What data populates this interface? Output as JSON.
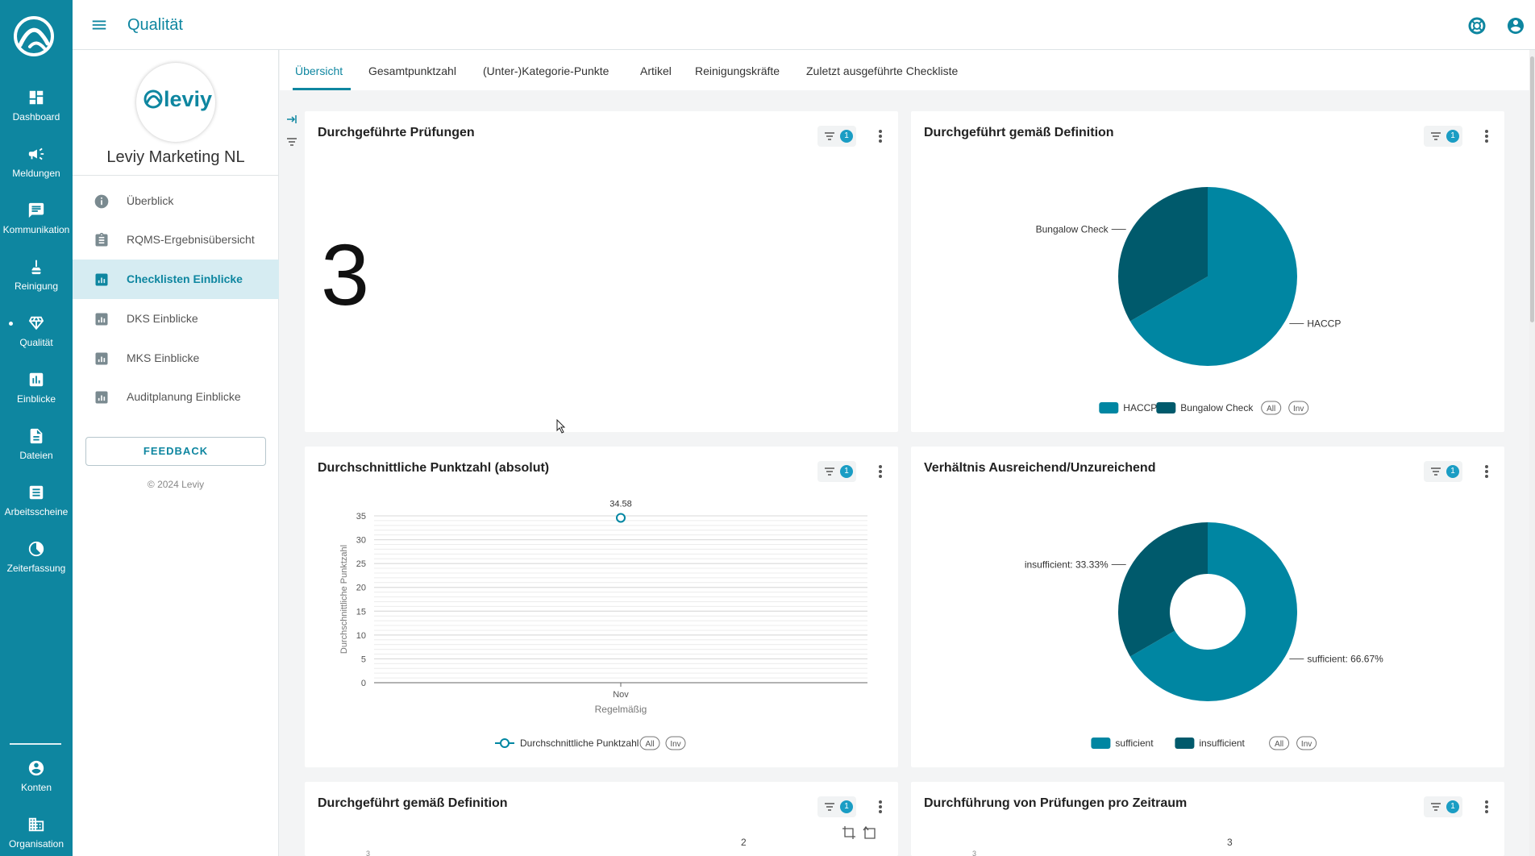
{
  "app": {
    "page_title": "Qualität"
  },
  "rail": {
    "items": [
      {
        "label": "Dashboard",
        "icon": "dashboard-icon"
      },
      {
        "label": "Meldungen",
        "icon": "megaphone-icon"
      },
      {
        "label": "Kommunikation",
        "icon": "chat-icon"
      },
      {
        "label": "Reinigung",
        "icon": "broom-icon"
      },
      {
        "label": "Qualität",
        "icon": "diamond-icon"
      },
      {
        "label": "Einblicke",
        "icon": "insights-icon"
      },
      {
        "label": "Dateien",
        "icon": "file-icon"
      },
      {
        "label": "Arbeitsscheine",
        "icon": "worksheet-icon"
      },
      {
        "label": "Zeiterfassung",
        "icon": "clock-icon"
      },
      {
        "label": "Konten",
        "icon": "account-icon"
      },
      {
        "label": "Organisation",
        "icon": "organisation-icon"
      }
    ]
  },
  "sidebar": {
    "brand_logo_text": "leviy",
    "brand_name": "Leviy Marketing NL",
    "items": [
      {
        "label": "Überblick"
      },
      {
        "label": "RQMS-Ergebnisübersicht"
      },
      {
        "label": "Checklisten Einblicke"
      },
      {
        "label": "DKS Einblicke"
      },
      {
        "label": "MKS Einblicke"
      },
      {
        "label": "Auditplanung Einblicke"
      }
    ],
    "feedback_label": "FEEDBACK",
    "copyright": "© 2024 Leviy"
  },
  "tabs": [
    {
      "label": "Übersicht"
    },
    {
      "label": "Gesamtpunktzahl"
    },
    {
      "label": "(Unter-)Kategorie-Punkte"
    },
    {
      "label": "Artikel"
    },
    {
      "label": "Reinigungskräfte"
    },
    {
      "label": "Zuletzt ausgeführte Checkliste"
    }
  ],
  "filter_badge": "1",
  "cards": {
    "pruefungen": {
      "title": "Durchgeführte Prüfungen",
      "value": "3"
    },
    "definition_pie": {
      "title": "Durchgeführt gemäß Definition"
    },
    "punktzahl": {
      "title": "Durchschnittliche Punktzahl (absolut)"
    },
    "verhaeltnis": {
      "title": "Verhältnis Ausreichend/Unzureichend"
    },
    "definition2": {
      "title": "Durchgeführt gemäß Definition",
      "partial_label": "2",
      "partial_axis": "3"
    },
    "zeitraum": {
      "title": "Durchführung von Prüfungen pro Zeitraum",
      "partial_label": "3",
      "partial_axis": "3"
    }
  },
  "legend_toggles": {
    "all": "All",
    "inv": "Inv"
  },
  "colors": {
    "primary": "#0e86a0",
    "series_a": "#0086a2",
    "series_b": "#005a6c"
  },
  "chart_data": [
    {
      "type": "pie",
      "title": "Durchgeführt gemäß Definition",
      "categories": [
        "HACCP",
        "Bungalow Check"
      ],
      "values": [
        66.67,
        33.33
      ],
      "legend": "bottom-center"
    },
    {
      "type": "line",
      "title": "Durchschnittliche Punktzahl (absolut)",
      "categories": [
        "Nov"
      ],
      "xlabel": "Regelmäßig",
      "ylabel": "Durchschnittliche Punktzahl",
      "ylim": [
        0,
        35
      ],
      "yticks": [
        "0",
        "5",
        "10",
        "15",
        "20",
        "25",
        "30",
        "35"
      ],
      "series": [
        {
          "name": "Durchschnittliche Punktzahl",
          "values": [
            34.58
          ]
        }
      ],
      "data_labels": [
        "34.58"
      ],
      "grid": true,
      "legend": "bottom-center"
    },
    {
      "type": "pie",
      "subtype": "donut",
      "title": "Verhältnis Ausreichend/Unzureichend",
      "categories": [
        "sufficient",
        "insufficient"
      ],
      "values": [
        66.67,
        33.33
      ],
      "labels": [
        "sufficient: 66.67%",
        "insufficient: 33.33%"
      ],
      "legend": "bottom-center"
    }
  ]
}
